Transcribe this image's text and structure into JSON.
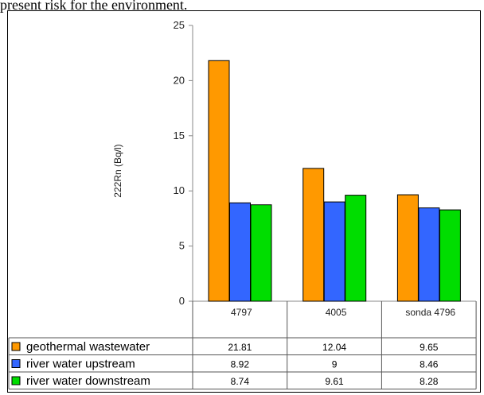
{
  "page": {
    "caption_fragment": "present risk for the environment."
  },
  "chart_data": {
    "type": "bar",
    "ylabel": "222Rn (Bq/l)",
    "xlabel": "",
    "ylim": [
      0,
      25
    ],
    "yticks": [
      "0",
      "5",
      "10",
      "15",
      "20",
      "25"
    ],
    "categories": [
      "4797",
      "4005",
      "sonda 4796"
    ],
    "series": [
      {
        "name": "geothermal wastewater",
        "values": [
          21.81,
          12.04,
          9.65
        ],
        "labels": [
          "21.81",
          "12.04",
          "9.65"
        ],
        "color": "#FF9900"
      },
      {
        "name": "river water upstream",
        "values": [
          8.92,
          9,
          8.46
        ],
        "labels": [
          "8.92",
          "9",
          "8.46"
        ],
        "color": "#3366FF"
      },
      {
        "name": "river water downstream",
        "values": [
          8.74,
          9.61,
          8.28
        ],
        "labels": [
          "8.74",
          "9.61",
          "8.28"
        ],
        "color": "#00DD00"
      }
    ],
    "grid": false,
    "legend": "bottom-left data table"
  }
}
